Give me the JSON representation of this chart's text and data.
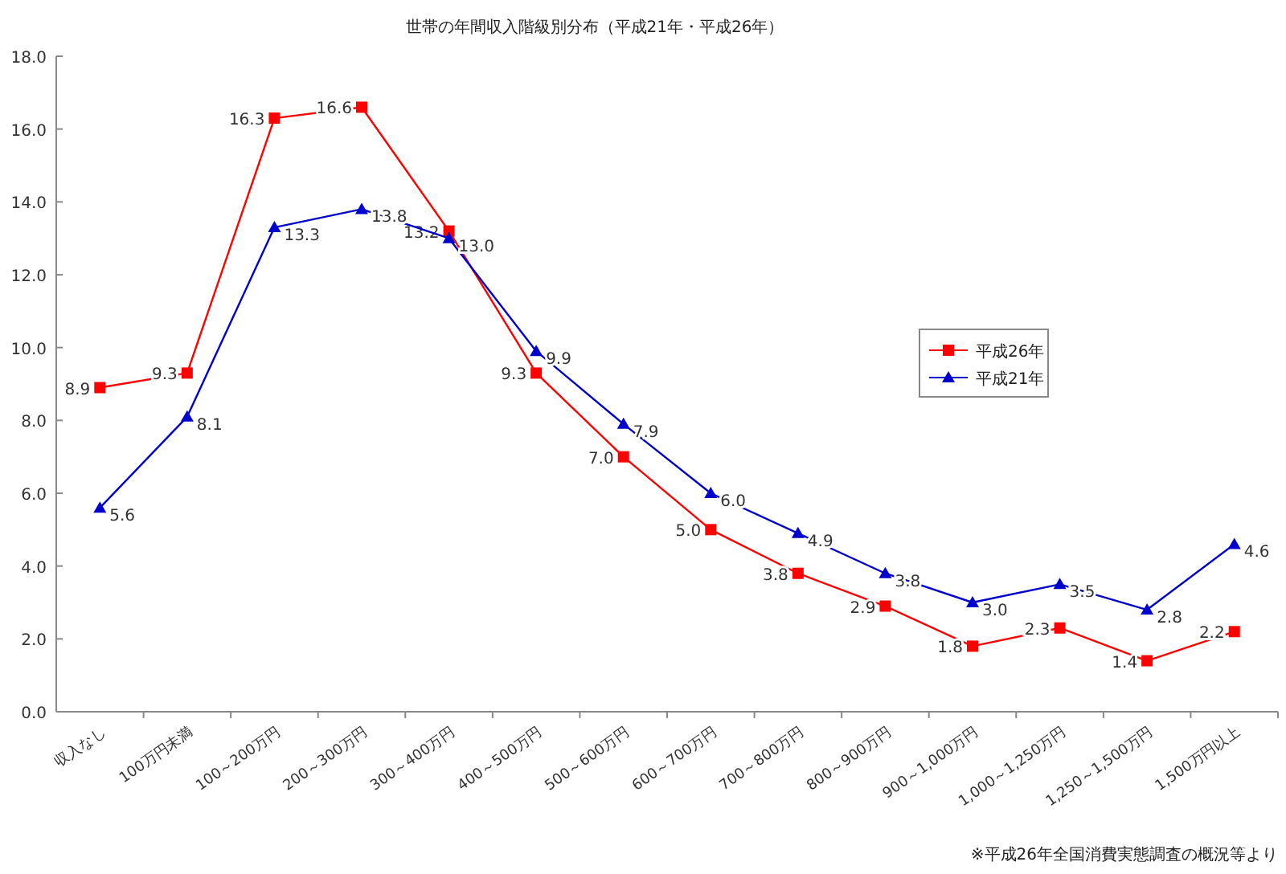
{
  "chart_data": {
    "type": "line",
    "title": "世帯の年間収入階級別分布（平成21年・平成26年）",
    "categories": [
      "収入なし",
      "100万円未満",
      "100～200万円",
      "200～300万円",
      "300～400万円",
      "400～500万円",
      "500～600万円",
      "600～700万円",
      "700～800万円",
      "800～900万円",
      "900～1,000万円",
      "1,000～1,250万円",
      "1,250～1,500万円",
      "1,500万円以上"
    ],
    "series": [
      {
        "name": "平成26年",
        "color": "#ff0000",
        "marker": "square",
        "values": [
          8.9,
          9.3,
          16.3,
          16.6,
          13.2,
          9.3,
          7.0,
          5.0,
          3.8,
          2.9,
          1.8,
          2.3,
          1.4,
          2.2
        ],
        "value_labels": [
          "8.9",
          "9.3",
          "16.3",
          "16.6",
          "13.2",
          "9.3",
          "7.0",
          "5.0",
          "3.8",
          "2.9",
          "1.8",
          "2.3",
          "1.4",
          "2.2"
        ]
      },
      {
        "name": "平成21年",
        "color": "#0000cc",
        "marker": "triangle",
        "values": [
          5.6,
          8.1,
          13.3,
          13.8,
          13.0,
          9.9,
          7.9,
          6.0,
          4.9,
          3.8,
          3.0,
          3.5,
          2.8,
          4.6
        ],
        "value_labels": [
          "5.6",
          "8.1",
          "13.3",
          "13.8",
          "13.0",
          "9.9",
          "7.9",
          "6.0",
          "4.9",
          "3.8",
          "3.0",
          "3.5",
          "2.8",
          "4.6"
        ]
      }
    ],
    "ylim": [
      0,
      18
    ],
    "yticks": [
      {
        "value": 0,
        "label": "0.0"
      },
      {
        "value": 2,
        "label": "2.0"
      },
      {
        "value": 4,
        "label": "4.0"
      },
      {
        "value": 6,
        "label": "6.0"
      },
      {
        "value": 8,
        "label": "8.0"
      },
      {
        "value": 10,
        "label": "10.0"
      },
      {
        "value": 12,
        "label": "12.0"
      },
      {
        "value": 14,
        "label": "14.0"
      },
      {
        "value": 16,
        "label": "16.0"
      },
      {
        "value": 18,
        "label": "18.0"
      }
    ],
    "grid": false,
    "legend": "right",
    "annotations": [
      "※平成26年全国消費実態調査の概況等より"
    ]
  }
}
